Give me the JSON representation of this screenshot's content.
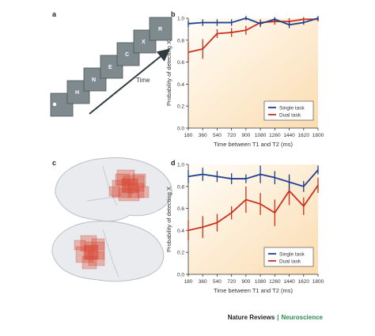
{
  "panel_letters": {
    "a": "a",
    "b": "b",
    "c": "c",
    "d": "d"
  },
  "panel_a": {
    "stream_letters": [
      "H",
      "N",
      "E",
      "C",
      "X",
      "R"
    ],
    "axis_label": "Time"
  },
  "credit": {
    "journal_a": "Nature Reviews",
    "separator": "|",
    "journal_b": "Neuroscience"
  },
  "colors": {
    "single": "#1f3f8f",
    "dual": "#c8321e",
    "bg_light": "#fffdf8",
    "bg_warm": "#fbdcb0",
    "brain": "#e9ebee",
    "activation": "#d94a36"
  },
  "chart_data": [
    {
      "type": "line",
      "panel": "b",
      "xlabel": "Time between T1 and T2 (ms)",
      "ylabel": "Probability of detecting X",
      "x": [
        180,
        360,
        540,
        720,
        900,
        1080,
        1260,
        1440,
        1620,
        1800
      ],
      "x_ticks": [
        "180",
        "360",
        "540",
        "720",
        "900",
        "1080",
        "1260",
        "1440",
        "1620",
        "1800"
      ],
      "y_ticks": [
        "0.0",
        "0.2",
        "0.4",
        "0.6",
        "0.8",
        "1.0"
      ],
      "ylim": [
        0,
        1.0
      ],
      "legend_position": "lower-right",
      "series": [
        {
          "name": "Single task",
          "values": [
            0.95,
            0.96,
            0.96,
            0.96,
            1.0,
            0.95,
            0.99,
            0.94,
            0.96,
            1.0
          ],
          "errors": [
            0.03,
            0.03,
            0.03,
            0.03,
            0.02,
            0.03,
            0.02,
            0.03,
            0.02,
            0.02
          ]
        },
        {
          "name": "Dual task",
          "values": [
            0.69,
            0.72,
            0.86,
            0.87,
            0.89,
            0.96,
            0.97,
            0.97,
            0.99,
            0.99
          ],
          "errors": [
            0.09,
            0.09,
            0.04,
            0.04,
            0.04,
            0.03,
            0.03,
            0.03,
            0.02,
            0.02
          ]
        }
      ]
    },
    {
      "type": "line",
      "panel": "d",
      "xlabel": "Time between T1 and T2 (ms)",
      "ylabel": "Probability of detecting X",
      "x": [
        180,
        360,
        540,
        720,
        900,
        1080,
        1260,
        1440,
        1620,
        1800
      ],
      "x_ticks": [
        "180",
        "360",
        "540",
        "720",
        "900",
        "1080",
        "1260",
        "1440",
        "1620",
        "1800"
      ],
      "y_ticks": [
        "0.0",
        "0.2",
        "0.4",
        "0.6",
        "0.8",
        "1.0"
      ],
      "ylim": [
        0,
        1.0
      ],
      "legend_position": "lower-right",
      "series": [
        {
          "name": "Single task",
          "values": [
            0.89,
            0.91,
            0.89,
            0.87,
            0.87,
            0.91,
            0.88,
            0.84,
            0.8,
            0.95
          ],
          "errors": [
            0.06,
            0.06,
            0.05,
            0.05,
            0.04,
            0.08,
            0.06,
            0.07,
            0.05,
            0.04
          ]
        },
        {
          "name": "Dual task",
          "values": [
            0.4,
            0.43,
            0.47,
            0.56,
            0.68,
            0.64,
            0.56,
            0.76,
            0.62,
            0.81
          ],
          "errors": [
            0.09,
            0.1,
            0.08,
            0.06,
            0.12,
            0.1,
            0.12,
            0.13,
            0.08,
            0.07
          ]
        }
      ]
    }
  ]
}
